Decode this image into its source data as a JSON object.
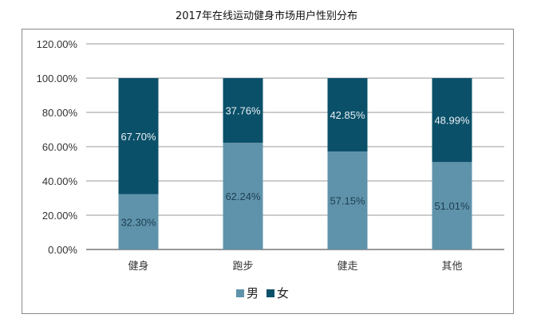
{
  "chart_data": {
    "type": "bar",
    "stacked": true,
    "title": "2017年在线运动健身市场用户性别分布",
    "categories": [
      "健身",
      "跑步",
      "健走",
      "其他"
    ],
    "series": [
      {
        "name": "男",
        "color": "#5f93ab",
        "values": [
          32.3,
          62.24,
          57.15,
          51.01
        ],
        "labels": [
          "32.30%",
          "62.24%",
          "57.15%",
          "51.01%"
        ]
      },
      {
        "name": "女",
        "color": "#0b5069",
        "values": [
          67.7,
          37.76,
          42.85,
          48.99
        ],
        "labels": [
          "67.70%",
          "37.76%",
          "42.85%",
          "48.99%"
        ]
      }
    ],
    "ylim": [
      0,
      120
    ],
    "yticks": [
      "0.00%",
      "20.00%",
      "40.00%",
      "60.00%",
      "80.00%",
      "100.00%",
      "120.00%"
    ],
    "grid": true,
    "legend": "bottom"
  }
}
